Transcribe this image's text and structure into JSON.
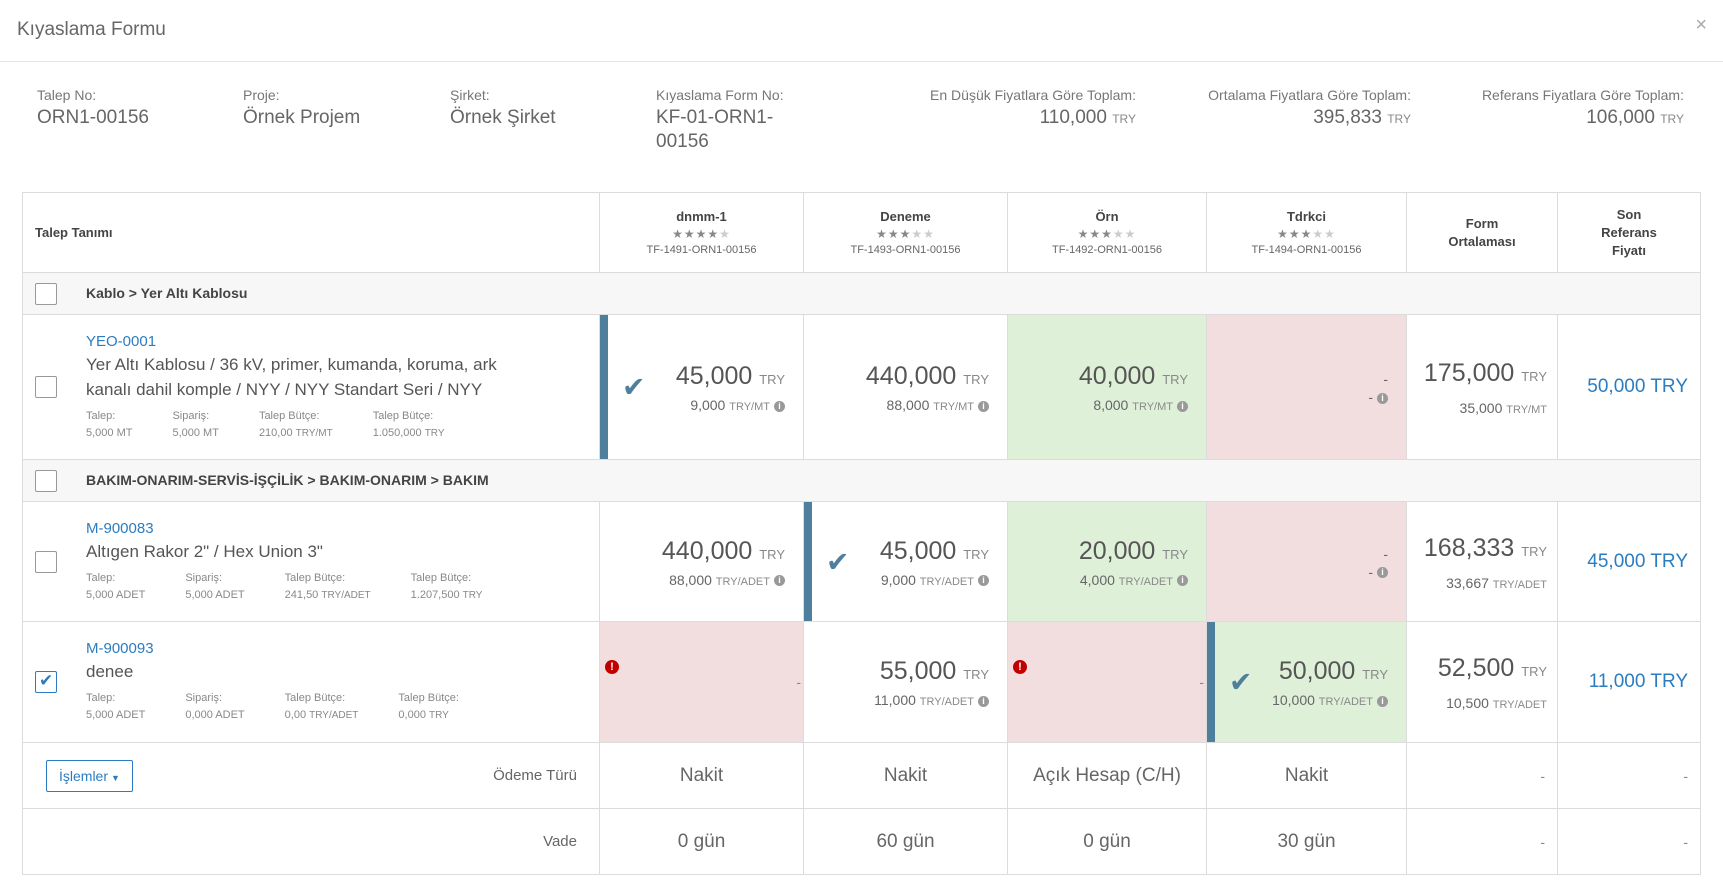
{
  "modal": {
    "title": "Kıyaslama Formu",
    "close": "×"
  },
  "info": {
    "talep_no": {
      "label": "Talep No:",
      "value": "ORN1-00156"
    },
    "proje": {
      "label": "Proje:",
      "value": "Örnek Projem"
    },
    "sirket": {
      "label": "Şirket:",
      "value": "Örnek Şirket"
    },
    "form_no": {
      "label": "Kıyaslama Form No:",
      "value1": "KF-01-ORN1-",
      "value2": "00156"
    },
    "en_dusuk": {
      "label": "En Düşük Fiyatlara Göre Toplam:",
      "value": "110,000",
      "currency": "TRY"
    },
    "ortalama": {
      "label": "Ortalama Fiyatlara Göre Toplam:",
      "value": "395,833",
      "currency": "TRY"
    },
    "referans": {
      "label": "Referans Fiyatlara Göre Toplam:",
      "value": "106,000",
      "currency": "TRY"
    }
  },
  "table": {
    "header_item": "Talep Tanımı",
    "vendors": [
      {
        "name": "dnmm-1",
        "stars": 4,
        "code": "TF-1491-ORN1-00156"
      },
      {
        "name": "Deneme",
        "stars": 3,
        "code": "TF-1493-ORN1-00156"
      },
      {
        "name": "Örn",
        "stars": 3,
        "code": "TF-1492-ORN1-00156"
      },
      {
        "name": "Tdrkci",
        "stars": 3,
        "code": "TF-1494-ORN1-00156"
      }
    ],
    "header_avg": {
      "line1": "Form",
      "line2": "Ortalaması"
    },
    "header_ref": {
      "line1": "Son",
      "line2": "Referans",
      "line3": "Fiyatı"
    },
    "categories": [
      {
        "label": "Kablo > Yer Altı Kablosu"
      },
      {
        "label": "BAKIM-ONARIM-SERVİS-İŞÇİLİK > BAKIM-ONARIM > BAKIM"
      }
    ],
    "items": [
      {
        "code": "YEO-0001",
        "desc_line1": "Yer Altı Kablosu / 36 kV, primer, kumanda, koruma, ark",
        "desc_line2": "kanalı dahil komple / NYY / NYY Standart Seri / NYY",
        "meta": [
          {
            "label": "Talep:",
            "value": "5,000 MT",
            "unit": ""
          },
          {
            "label": "Sipariş:",
            "value": "5,000 MT",
            "unit": ""
          },
          {
            "label": "Talep Bütçe:",
            "value": "210,00",
            "unit": "TRY/MT"
          },
          {
            "label": "Talep Bütçe:",
            "value": "1.050,000",
            "unit": "TRY"
          }
        ],
        "checked": false,
        "prices": [
          {
            "total": "45,000",
            "cur": "TRY",
            "unit_price": "9,000",
            "unit_cur": "TRY/MT"
          },
          {
            "total": "440,000",
            "cur": "TRY",
            "unit_price": "88,000",
            "unit_cur": "TRY/MT"
          },
          {
            "total": "40,000",
            "cur": "TRY",
            "unit_price": "8,000",
            "unit_cur": "TRY/MT"
          },
          {
            "total": "-",
            "cur": "",
            "unit_price": "-",
            "unit_cur": ""
          }
        ],
        "avg": {
          "total": "175,000",
          "cur": "TRY",
          "unit_price": "35,000",
          "unit_cur": "TRY/MT"
        },
        "ref": "50,000 TRY"
      },
      {
        "code": "M-900083",
        "desc_line1": "Altıgen Rakor 2\" / Hex Union 3\"",
        "meta": [
          {
            "label": "Talep:",
            "value": "5,000 ADET",
            "unit": ""
          },
          {
            "label": "Sipariş:",
            "value": "5,000 ADET",
            "unit": ""
          },
          {
            "label": "Talep Bütçe:",
            "value": "241,50",
            "unit": "TRY/ADET"
          },
          {
            "label": "Talep Bütçe:",
            "value": "1.207,500",
            "unit": "TRY"
          }
        ],
        "checked": false,
        "prices": [
          {
            "total": "440,000",
            "cur": "TRY",
            "unit_price": "88,000",
            "unit_cur": "TRY/ADET"
          },
          {
            "total": "45,000",
            "cur": "TRY",
            "unit_price": "9,000",
            "unit_cur": "TRY/ADET"
          },
          {
            "total": "20,000",
            "cur": "TRY",
            "unit_price": "4,000",
            "unit_cur": "TRY/ADET"
          },
          {
            "total": "-",
            "cur": "",
            "unit_price": "-",
            "unit_cur": ""
          }
        ],
        "avg": {
          "total": "168,333",
          "cur": "TRY",
          "unit_price": "33,667",
          "unit_cur": "TRY/ADET"
        },
        "ref": "45,000 TRY"
      },
      {
        "code": "M-900093",
        "desc_line1": "denee",
        "meta": [
          {
            "label": "Talep:",
            "value": "5,000 ADET",
            "unit": ""
          },
          {
            "label": "Sipariş:",
            "value": "0,000 ADET",
            "unit": ""
          },
          {
            "label": "Talep Bütçe:",
            "value": "0,00",
            "unit": "TRY/ADET"
          },
          {
            "label": "Talep Bütçe:",
            "value": "0,000",
            "unit": "TRY"
          }
        ],
        "checked": true,
        "prices": [
          {
            "total": "",
            "cur": "",
            "unit_price": "",
            "unit_cur": "",
            "error_dash": "-"
          },
          {
            "total": "55,000",
            "cur": "TRY",
            "unit_price": "11,000",
            "unit_cur": "TRY/ADET"
          },
          {
            "total": "",
            "cur": "",
            "unit_price": "",
            "unit_cur": "",
            "error_dash": "-"
          },
          {
            "total": "50,000",
            "cur": "TRY",
            "unit_price": "10,000",
            "unit_cur": "TRY/ADET"
          }
        ],
        "avg": {
          "total": "52,500",
          "cur": "TRY",
          "unit_price": "10,500",
          "unit_cur": "TRY/ADET"
        },
        "ref": "11,000 TRY"
      }
    ],
    "footer": {
      "ops_button": "İşlemler",
      "odeme_label": "Ödeme Türü",
      "odeme": [
        "Nakit",
        "Nakit",
        "Açık Hesap (C/H)",
        "Nakit"
      ],
      "vade_label": "Vade",
      "vade": [
        "0 gün",
        "60 gün",
        "0 gün",
        "30 gün"
      ],
      "dash": "-"
    }
  }
}
